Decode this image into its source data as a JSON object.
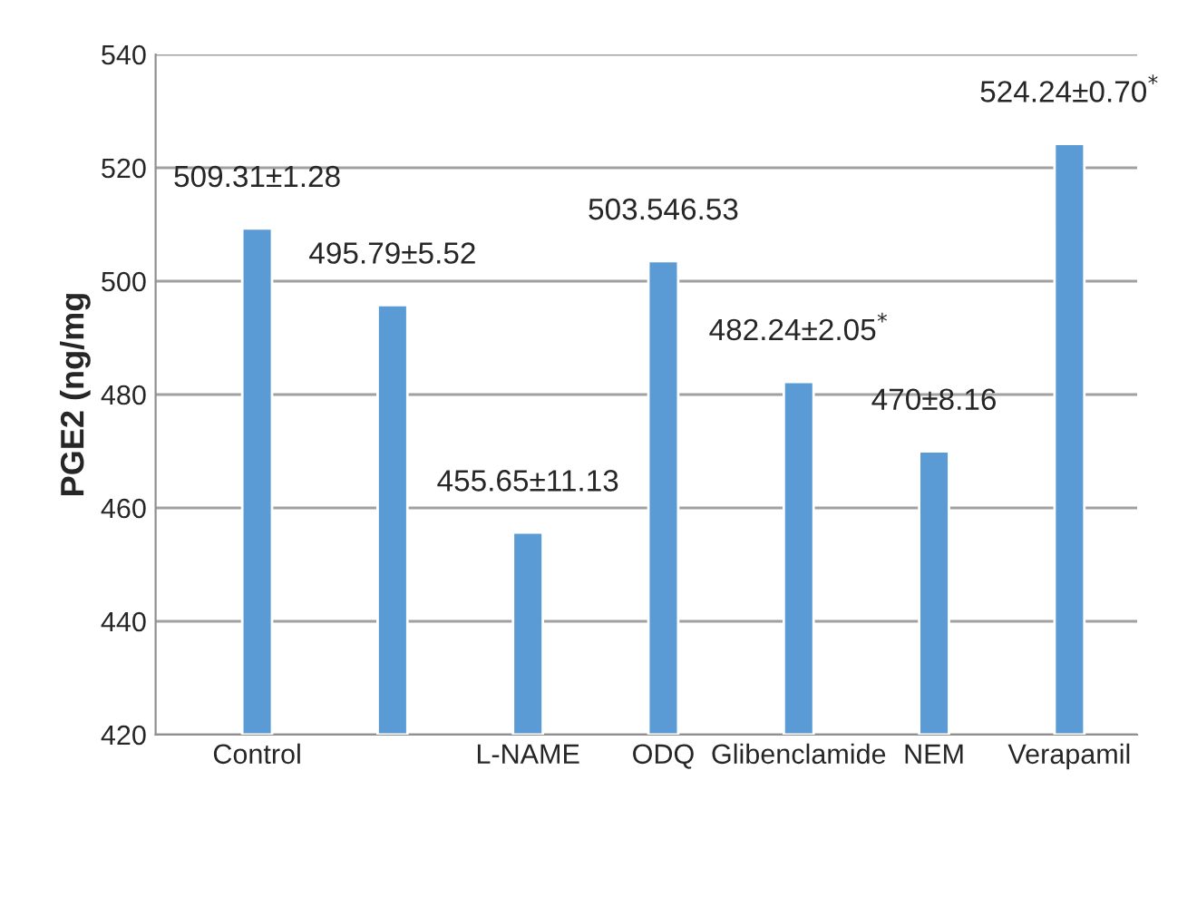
{
  "chart_data": {
    "type": "bar",
    "ylabel": "PGE2 (ng/mg",
    "categories": [
      "Control",
      null,
      "L-NAME",
      "ODQ",
      "Glibenclamide",
      "NEM",
      "Verapamil"
    ],
    "values": [
      509.31,
      495.79,
      455.65,
      503.54,
      482.24,
      470,
      524.24
    ],
    "value_labels": [
      "509.31±1.28",
      "495.79±5.52",
      "455.65±11.13",
      "503.546.53",
      "482.24±2.05$^{*}$",
      "470±8.16",
      "524.24±0.70$^{*}$"
    ],
    "color": "#5b9bd5",
    "ylim": [
      420,
      540
    ],
    "yticks": [
      420,
      440,
      460,
      480,
      500,
      520,
      540
    ],
    "grid": "y"
  }
}
